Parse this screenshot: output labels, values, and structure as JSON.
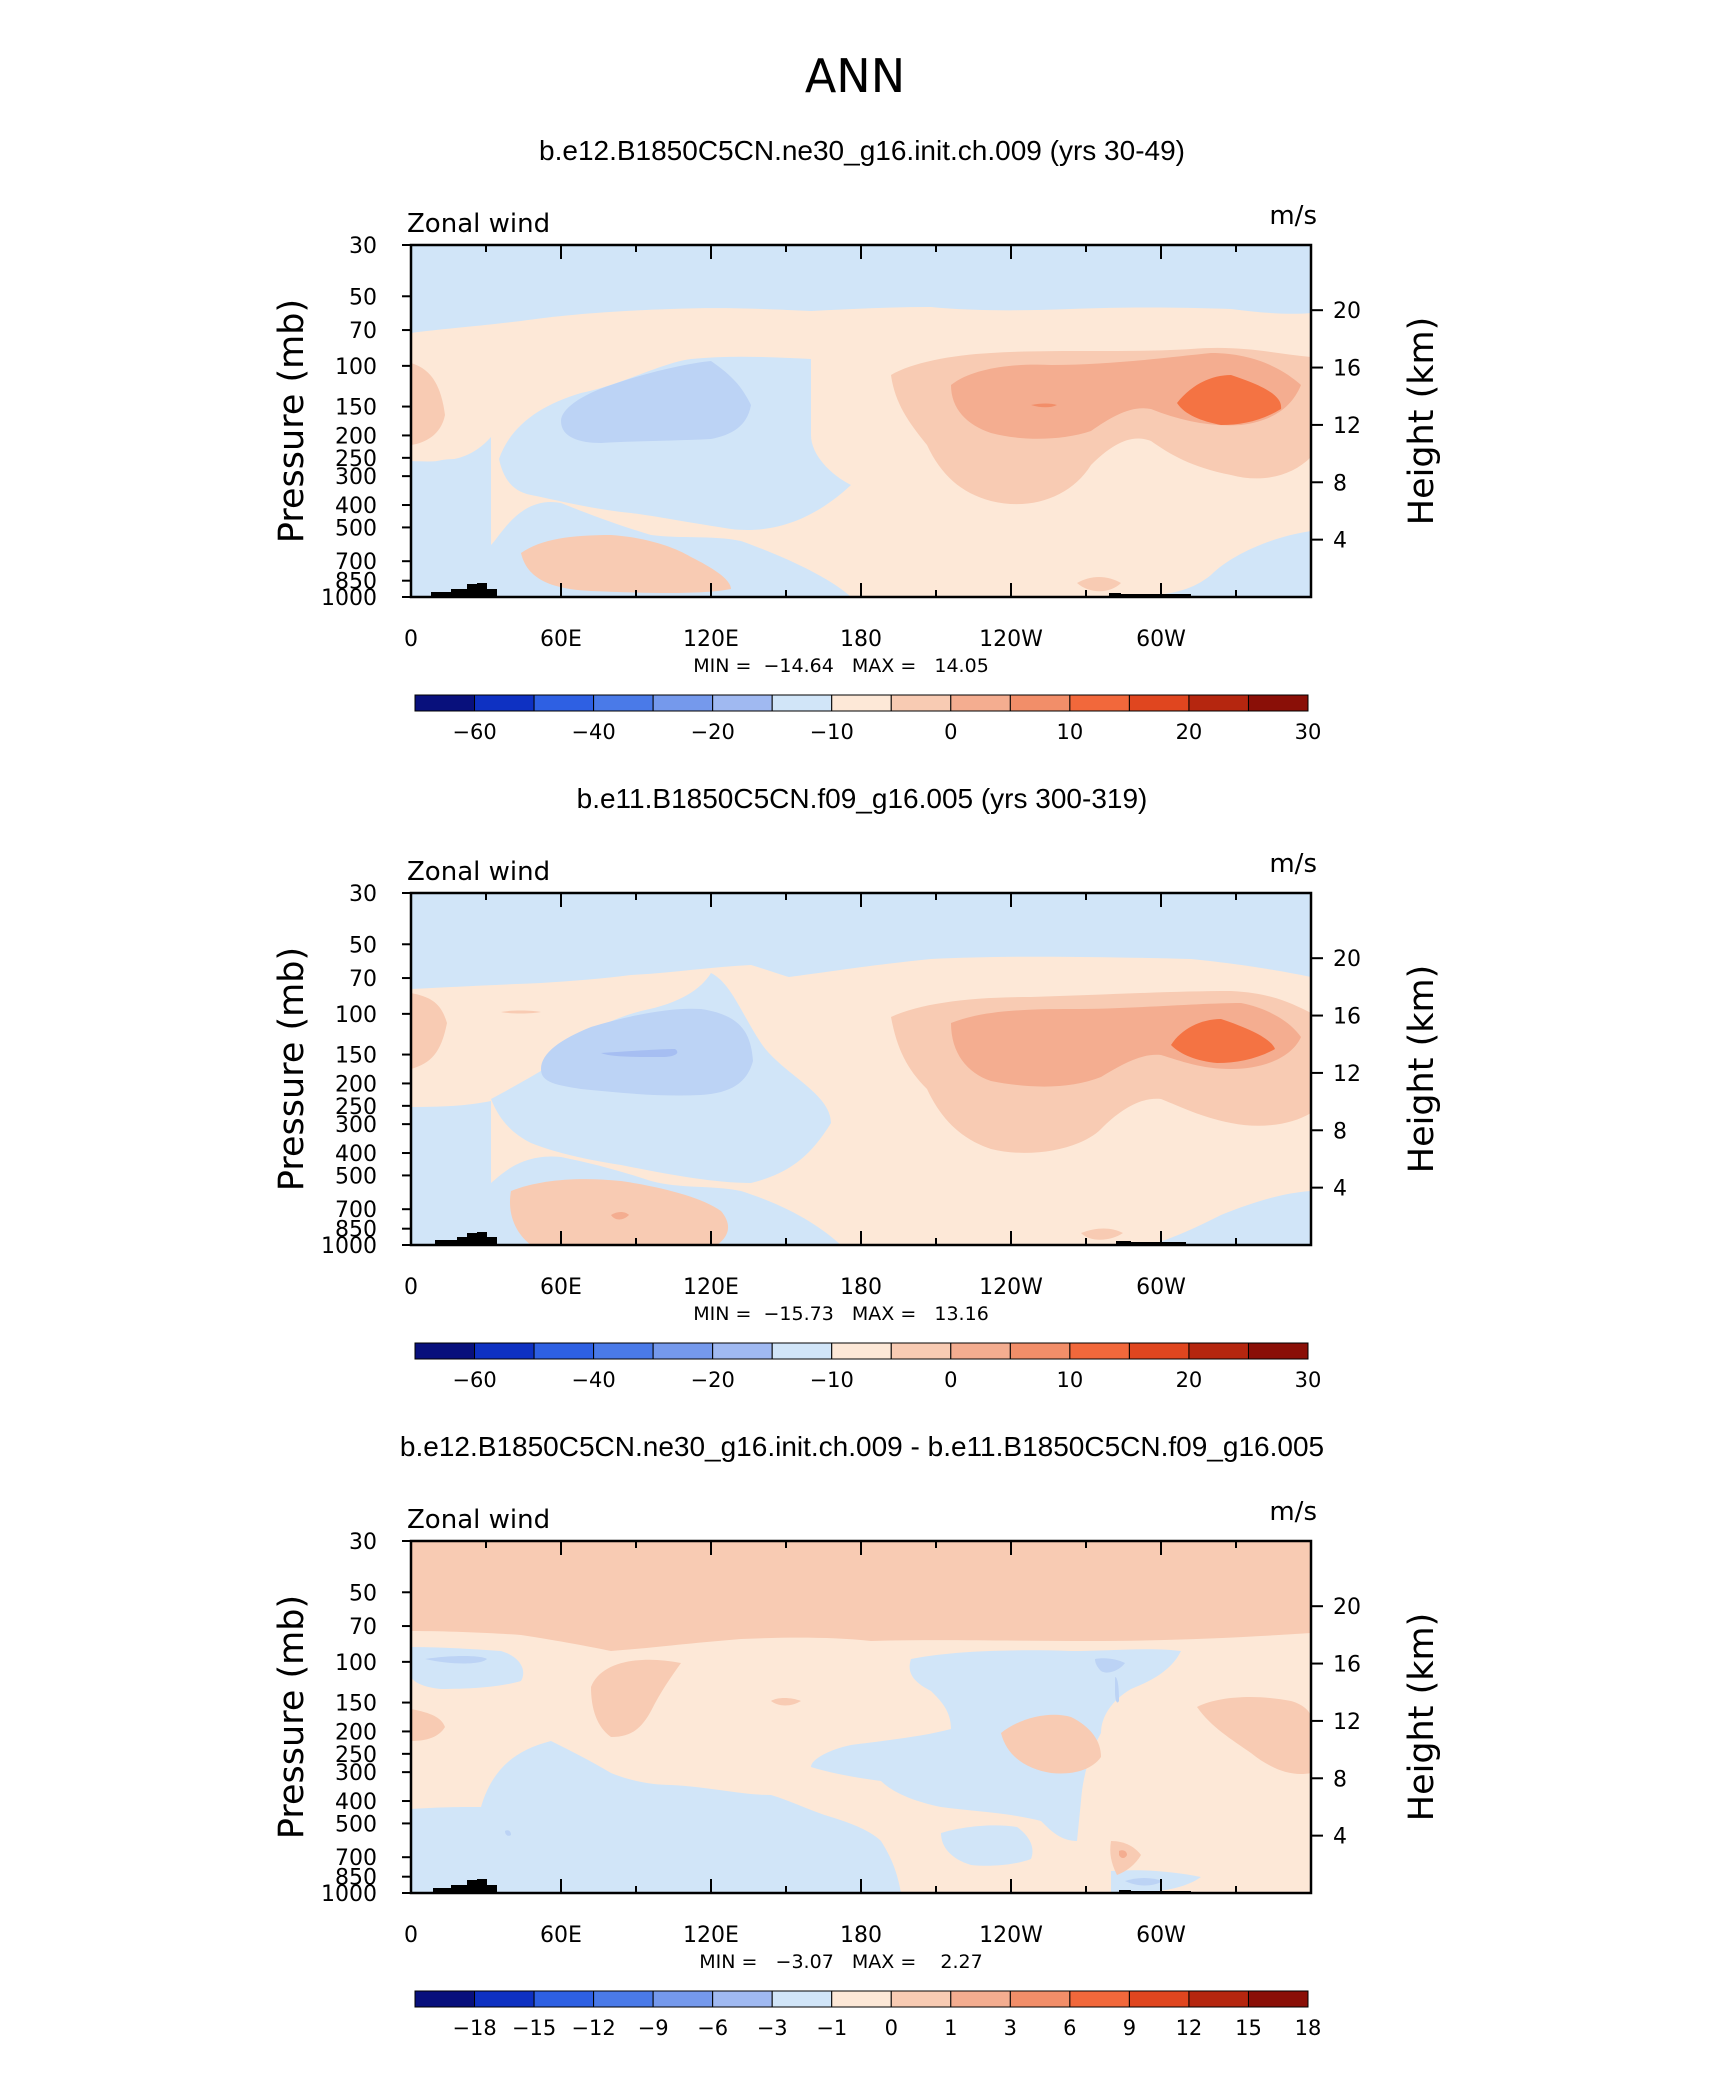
{
  "title": "ANN",
  "colors": {
    "blue_light": "#d1e5f8",
    "blue_mid": "#bcd3f5",
    "blue_strong": "#a6bef2",
    "blue_deep": "#8facef",
    "peach": "#fde8d7",
    "salmon_light": "#f8cbb3",
    "salmon": "#f4ad90",
    "orange": "#f28e69",
    "orange_strong": "#f47343",
    "topo": "#000000"
  },
  "chart_data": [
    {
      "type": "contour",
      "title": "b.e12.B1850C5CN.ne30_g16.init.ch.009 (yrs 30-49)",
      "left_label": "Zonal wind",
      "right_label": "m/s",
      "ylabel": "Pressure (mb)",
      "ylabel2": "Height (km)",
      "x_ticks": [
        "0",
        "60E",
        "120E",
        "180",
        "120W",
        "60W"
      ],
      "y_ticks": [
        "30",
        "50",
        "70",
        "100",
        "150",
        "200",
        "250",
        "300",
        "400",
        "500",
        "700",
        "850",
        "1000"
      ],
      "y2_ticks": [
        "20",
        "16",
        "12",
        "8",
        "4"
      ],
      "min": -14.64,
      "max": 14.05,
      "stats_text": "MIN =  −14.64   MAX =   14.05",
      "colorbar": {
        "colors": [
          "#08107c",
          "#0e31c2",
          "#2e60e3",
          "#4a7ae8",
          "#7599ec",
          "#a0b9f1",
          "#d1e5f8",
          "#fde8d7",
          "#f8cbb3",
          "#f4ad90",
          "#f28e69",
          "#f2683b",
          "#e0461f",
          "#b5260f",
          "#8a0f07"
        ],
        "labels": [
          "−60",
          "−40",
          "−20",
          "−10",
          "0",
          "10",
          "20",
          "30"
        ],
        "label_slots": [
          1,
          3,
          5,
          7,
          9,
          11,
          13,
          15
        ]
      }
    },
    {
      "type": "contour",
      "title": "b.e11.B1850C5CN.f09_g16.005 (yrs 300-319)",
      "left_label": "Zonal wind",
      "right_label": "m/s",
      "ylabel": "Pressure (mb)",
      "ylabel2": "Height (km)",
      "x_ticks": [
        "0",
        "60E",
        "120E",
        "180",
        "120W",
        "60W"
      ],
      "y_ticks": [
        "30",
        "50",
        "70",
        "100",
        "150",
        "200",
        "250",
        "300",
        "400",
        "500",
        "700",
        "850",
        "1000"
      ],
      "y2_ticks": [
        "20",
        "16",
        "12",
        "8",
        "4"
      ],
      "min": -15.73,
      "max": 13.16,
      "stats_text": "MIN =  −15.73   MAX =   13.16",
      "colorbar": {
        "colors": [
          "#08107c",
          "#0e31c2",
          "#2e60e3",
          "#4a7ae8",
          "#7599ec",
          "#a0b9f1",
          "#d1e5f8",
          "#fde8d7",
          "#f8cbb3",
          "#f4ad90",
          "#f28e69",
          "#f2683b",
          "#e0461f",
          "#b5260f",
          "#8a0f07"
        ],
        "labels": [
          "−60",
          "−40",
          "−20",
          "−10",
          "0",
          "10",
          "20",
          "30"
        ],
        "label_slots": [
          1,
          3,
          5,
          7,
          9,
          11,
          13,
          15
        ]
      }
    },
    {
      "type": "contour",
      "title": "b.e12.B1850C5CN.ne30_g16.init.ch.009 - b.e11.B1850C5CN.f09_g16.005",
      "left_label": "Zonal wind",
      "right_label": "m/s",
      "ylabel": "Pressure (mb)",
      "ylabel2": "Height (km)",
      "x_ticks": [
        "0",
        "60E",
        "120E",
        "180",
        "120W",
        "60W"
      ],
      "y_ticks": [
        "30",
        "50",
        "70",
        "100",
        "150",
        "200",
        "250",
        "300",
        "400",
        "500",
        "700",
        "850",
        "1000"
      ],
      "y2_ticks": [
        "20",
        "16",
        "12",
        "8",
        "4"
      ],
      "min": -3.07,
      "max": 2.27,
      "stats_text": "MIN =   −3.07   MAX =    2.27",
      "colorbar": {
        "colors": [
          "#08107c",
          "#0e31c2",
          "#2e60e3",
          "#4a7ae8",
          "#7599ec",
          "#a0b9f1",
          "#d1e5f8",
          "#fde8d7",
          "#f8cbb3",
          "#f4ad90",
          "#f28e69",
          "#f2683b",
          "#e0461f",
          "#b5260f",
          "#8a0f07"
        ],
        "labels": [
          "−18",
          "−15",
          "−12",
          "−9",
          "−6",
          "−3",
          "−1",
          "0",
          "1",
          "3",
          "6",
          "9",
          "12",
          "15",
          "18"
        ],
        "label_slots": [
          1,
          2,
          3,
          4,
          5,
          6,
          7,
          8,
          9,
          10,
          11,
          12,
          13,
          14,
          15
        ]
      }
    }
  ]
}
